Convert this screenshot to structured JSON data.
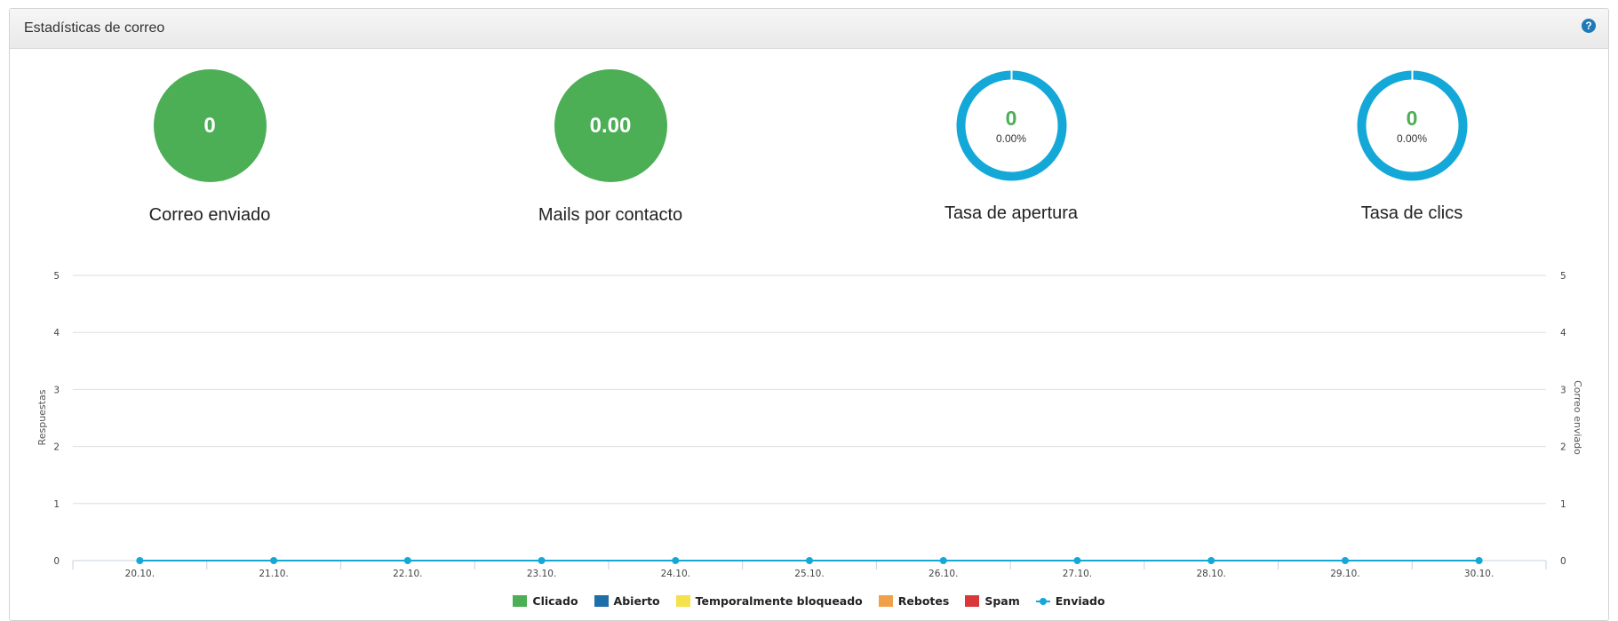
{
  "panel": {
    "title": "Estadísticas de correo",
    "help_icon": "question-circle-icon"
  },
  "stats": [
    {
      "value": "0",
      "label": "Correo enviado",
      "style": "filled"
    },
    {
      "value": "0.00",
      "label": "Mails por contacto",
      "style": "filled"
    },
    {
      "value": "0",
      "percent": "0.00%",
      "label": "Tasa de apertura",
      "style": "ring"
    },
    {
      "value": "0",
      "percent": "0.00%",
      "label": "Tasa de clics",
      "style": "ring"
    }
  ],
  "colors": {
    "green": "#4cae55",
    "ring": "#14a8d8",
    "help": "#1e7ab8",
    "clicado": "#4cae55",
    "abierto": "#1e6fa8",
    "bloqueado": "#f5e14a",
    "rebotes": "#f0a04b",
    "spam": "#d9383a",
    "enviado": "#14a8d8"
  },
  "chart_data": {
    "type": "line",
    "categories": [
      "20.10.",
      "21.10.",
      "22.10.",
      "23.10.",
      "24.10.",
      "25.10.",
      "26.10.",
      "27.10.",
      "28.10.",
      "29.10.",
      "30.10."
    ],
    "series": [
      {
        "name": "Clicado",
        "kind": "bar",
        "values": [
          0,
          0,
          0,
          0,
          0,
          0,
          0,
          0,
          0,
          0,
          0
        ]
      },
      {
        "name": "Abierto",
        "kind": "bar",
        "values": [
          0,
          0,
          0,
          0,
          0,
          0,
          0,
          0,
          0,
          0,
          0
        ]
      },
      {
        "name": "Temporalmente bloqueado",
        "kind": "bar",
        "values": [
          0,
          0,
          0,
          0,
          0,
          0,
          0,
          0,
          0,
          0,
          0
        ]
      },
      {
        "name": "Rebotes",
        "kind": "bar",
        "values": [
          0,
          0,
          0,
          0,
          0,
          0,
          0,
          0,
          0,
          0,
          0
        ]
      },
      {
        "name": "Spam",
        "kind": "bar",
        "values": [
          0,
          0,
          0,
          0,
          0,
          0,
          0,
          0,
          0,
          0,
          0
        ]
      },
      {
        "name": "Enviado",
        "kind": "line",
        "values": [
          0,
          0,
          0,
          0,
          0,
          0,
          0,
          0,
          0,
          0,
          0
        ]
      }
    ],
    "ylabel_left": "Respuestas",
    "ylabel_right": "Correo enviado",
    "ylim": [
      0,
      5
    ],
    "yticks": [
      "0",
      "1",
      "2",
      "3",
      "4",
      "5"
    ],
    "grid": true,
    "legend_position": "bottom"
  }
}
